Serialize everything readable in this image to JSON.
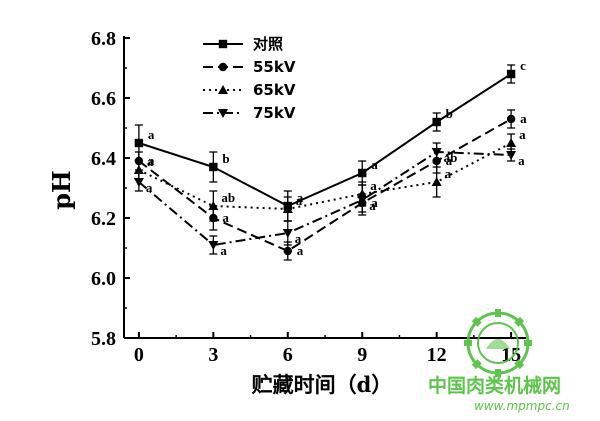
{
  "chart_data": {
    "type": "line",
    "title": "",
    "xlabel": "贮藏时间（d）",
    "ylabel": "pH",
    "x": [
      0,
      3,
      6,
      9,
      12,
      15
    ],
    "x_tick_labels": [
      "0",
      "3",
      "6",
      "9",
      "12",
      "15"
    ],
    "xlim": [
      -0.6,
      15.6
    ],
    "ylim": [
      5.8,
      6.8
    ],
    "y_ticks": [
      5.8,
      6.0,
      6.2,
      6.4,
      6.6,
      6.8
    ],
    "y_tick_labels": [
      "5.8",
      "6.0",
      "6.2",
      "6.4",
      "6.6",
      "6.8"
    ],
    "grid": false,
    "legend_position": "top-left",
    "series": [
      {
        "name": "对照",
        "marker": "square",
        "line_style": "solid",
        "values": [
          6.45,
          6.37,
          6.24,
          6.35,
          6.52,
          6.68
        ],
        "errors": [
          0.06,
          0.05,
          0.05,
          0.04,
          0.03,
          0.03
        ],
        "labels": [
          "a",
          "b",
          "a",
          "a",
          "b",
          "c"
        ]
      },
      {
        "name": "55kV",
        "marker": "circle",
        "line_style": "long-dash",
        "values": [
          6.39,
          6.2,
          6.09,
          6.25,
          6.39,
          6.53
        ],
        "errors": [
          0.03,
          0.04,
          0.03,
          0.03,
          0.04,
          0.03
        ],
        "labels": [
          "a",
          "a",
          "a",
          "a",
          "a",
          "a"
        ]
      },
      {
        "name": "65kV",
        "marker": "triangle-up",
        "line_style": "dotted",
        "values": [
          6.36,
          6.24,
          6.23,
          6.28,
          6.32,
          6.45
        ],
        "errors": [
          0.03,
          0.05,
          0.04,
          0.04,
          0.05,
          0.03
        ],
        "labels": [
          "a",
          "ab",
          "a",
          "a",
          "a",
          "a"
        ]
      },
      {
        "name": "75kV",
        "marker": "triangle-down",
        "line_style": "dash-dot",
        "values": [
          6.32,
          6.11,
          6.15,
          6.26,
          6.42,
          6.41
        ],
        "errors": [
          0.03,
          0.03,
          0.04,
          0.05,
          0.03,
          0.02
        ],
        "labels": [
          "a",
          "a",
          "a",
          "a",
          "ab",
          "a"
        ]
      }
    ]
  },
  "watermark": {
    "site_name": "中国肉类机械网",
    "url": "www.mpmpc.cn",
    "color": "#4cbf3a"
  }
}
